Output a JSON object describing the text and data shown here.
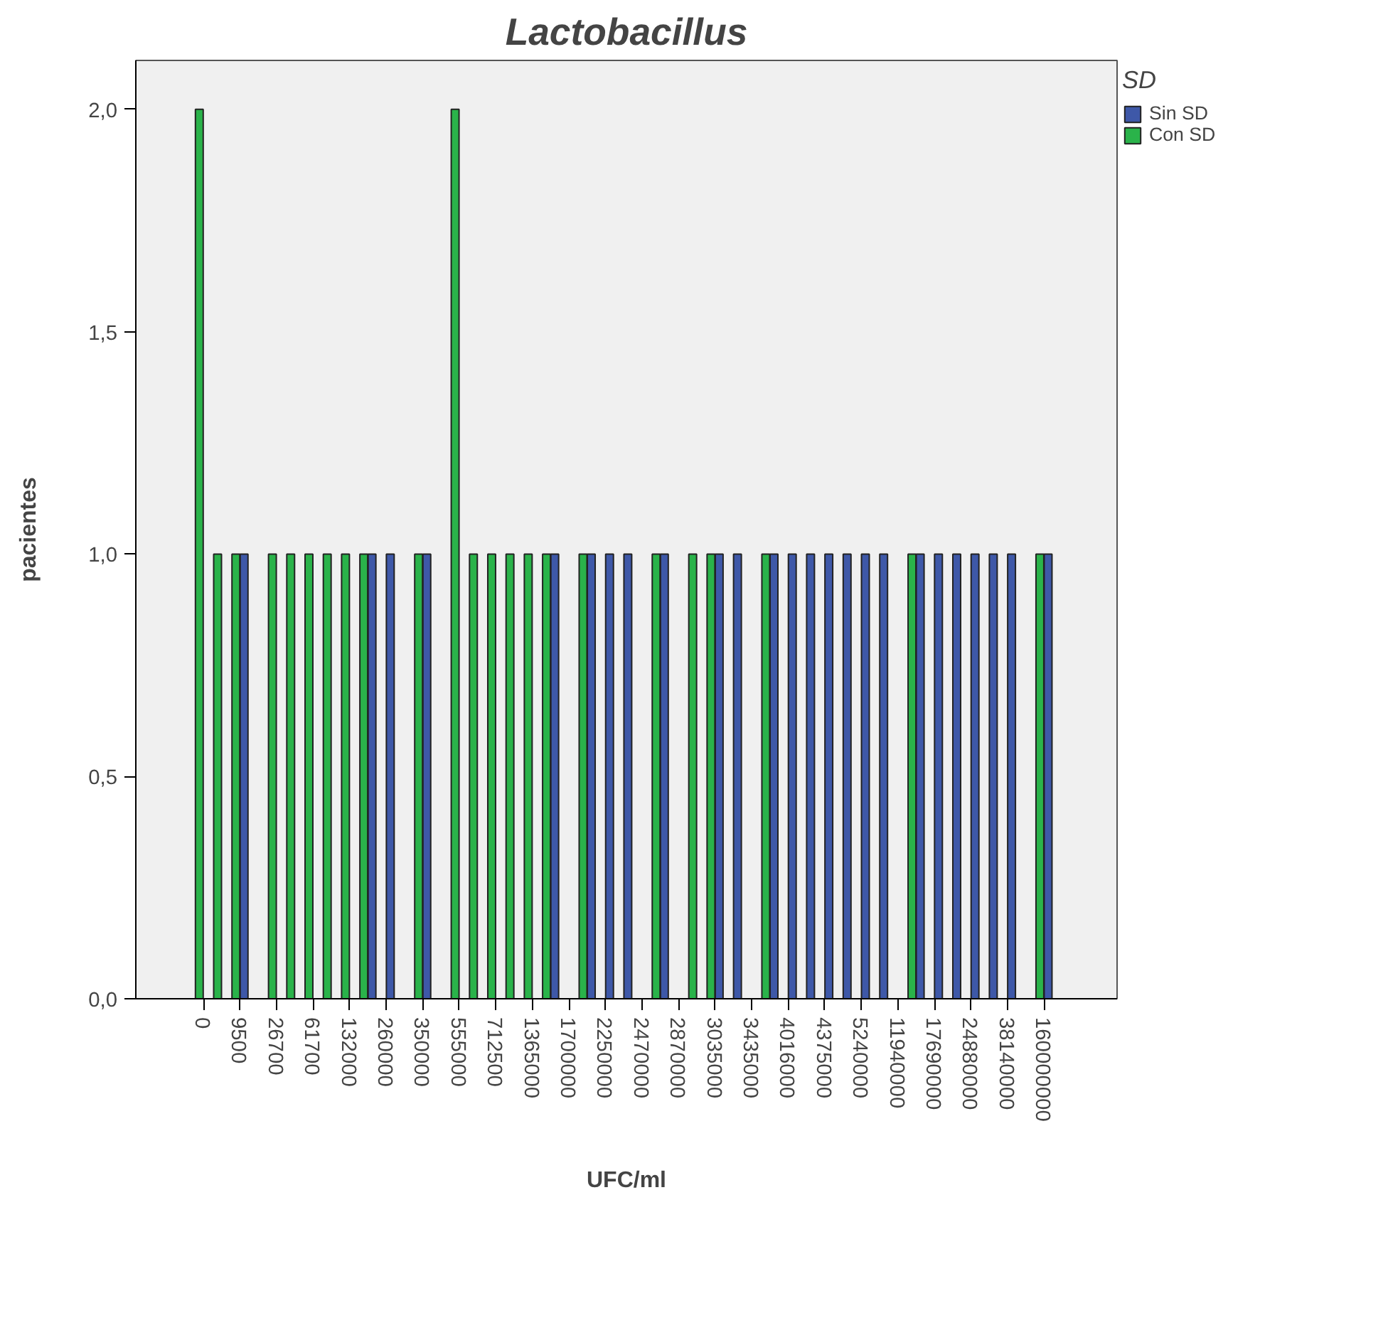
{
  "chart_data": {
    "type": "bar",
    "title": "Lactobacillus",
    "xlabel": "UFC/ml",
    "ylabel": "pacientes",
    "legend_title": "SD",
    "legend": "top right",
    "categories": [
      "0",
      null,
      "9500",
      null,
      "26700",
      null,
      "61700",
      null,
      "132000",
      null,
      "260000",
      null,
      "350000",
      null,
      "555000",
      null,
      "712500",
      null,
      "1365000",
      null,
      "1700000",
      null,
      "2250000",
      null,
      "2470000",
      null,
      "2870000",
      null,
      "3035000",
      null,
      "3435000",
      null,
      "4016000",
      null,
      "4375000",
      null,
      "5240000",
      null,
      "11940000",
      null,
      "17690000",
      null,
      "24880000",
      null,
      "38140000",
      null,
      "160000000"
    ],
    "series": [
      {
        "name": "Sin SD",
        "color": "#3e58a8",
        "values": [
          null,
          null,
          1,
          null,
          null,
          null,
          null,
          null,
          null,
          1,
          1,
          null,
          1,
          null,
          null,
          null,
          null,
          null,
          null,
          1,
          null,
          1,
          1,
          1,
          null,
          1,
          null,
          null,
          1,
          1,
          null,
          1,
          1,
          1,
          1,
          1,
          1,
          1,
          null,
          1,
          1,
          1,
          1,
          1,
          1,
          null,
          1
        ]
      },
      {
        "name": "Con SD",
        "color": "#2ab34a",
        "values": [
          2,
          1,
          1,
          null,
          1,
          1,
          1,
          1,
          1,
          1,
          null,
          null,
          1,
          null,
          2,
          1,
          1,
          1,
          1,
          1,
          null,
          1,
          null,
          null,
          null,
          1,
          null,
          1,
          1,
          null,
          null,
          1,
          null,
          null,
          null,
          null,
          null,
          null,
          null,
          1,
          null,
          null,
          null,
          null,
          null,
          null,
          1
        ]
      }
    ],
    "ylim": [
      0,
      2.11
    ],
    "yticks": [
      {
        "value": 0,
        "label": "0,0"
      },
      {
        "value": 0.5,
        "label": "0,5"
      },
      {
        "value": 1,
        "label": "1,0"
      },
      {
        "value": 1.5,
        "label": "1,5"
      },
      {
        "value": 2,
        "label": "2,0"
      }
    ],
    "grid": false
  }
}
